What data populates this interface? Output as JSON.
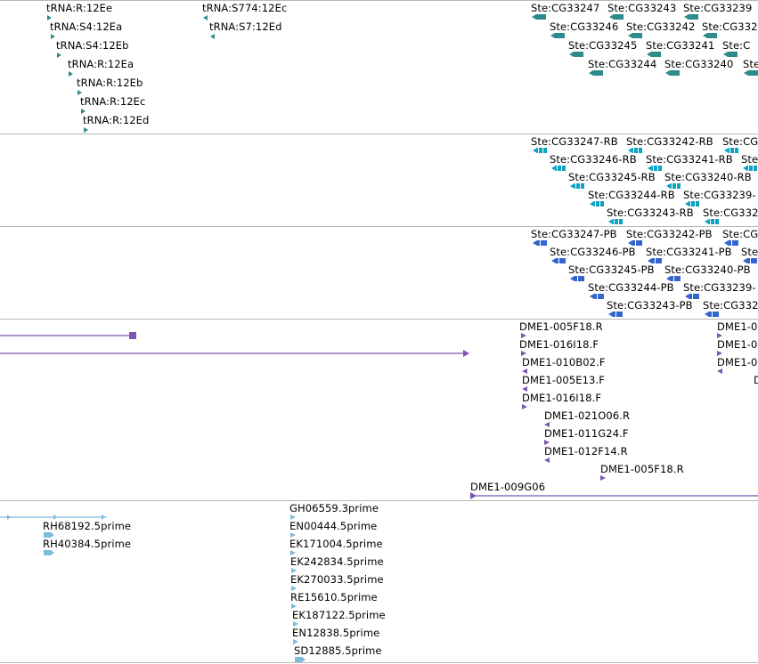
{
  "colors": {
    "trna": "#2e8b8b",
    "gene": "#2e8b8b",
    "transcript": "#0aa3c2",
    "protein": "#3366cc",
    "clone": "#7b55b0",
    "est": "#7cbbd9",
    "divider": "#b8b8b8"
  },
  "tier1": {
    "features": [
      {
        "label": "tRNA:R:12Ee",
        "strand": "+"
      },
      {
        "label": "tRNA:S4:12Ea",
        "strand": "+"
      },
      {
        "label": "tRNA:S4:12Eb",
        "strand": "+"
      },
      {
        "label": "tRNA:R:12Ea",
        "strand": "+"
      },
      {
        "label": "tRNA:R:12Eb",
        "strand": "+"
      },
      {
        "label": "tRNA:R:12Ec",
        "strand": "+"
      },
      {
        "label": "tRNA:R:12Ed",
        "strand": "+"
      },
      {
        "label": "tRNA:S774:12Ec",
        "strand": "-"
      },
      {
        "label": "tRNA:S7:12Ed",
        "strand": "-"
      },
      {
        "label": "Ste:CG33247",
        "strand": "-"
      },
      {
        "label": "Ste:CG33243",
        "strand": "-"
      },
      {
        "label": "Ste:CG33239",
        "strand": "-"
      },
      {
        "label": "Ste:CG33246",
        "strand": "-"
      },
      {
        "label": "Ste:CG33242",
        "strand": "-"
      },
      {
        "label": "Ste:CG332",
        "strand": "-"
      },
      {
        "label": "Ste:CG33245",
        "strand": "-"
      },
      {
        "label": "Ste:CG33241",
        "strand": "-"
      },
      {
        "label": "Ste:C",
        "strand": "-"
      },
      {
        "label": "Ste:CG33244",
        "strand": "-"
      },
      {
        "label": "Ste:CG33240",
        "strand": "-"
      },
      {
        "label": "Ste:",
        "strand": "-"
      }
    ]
  },
  "tier2": {
    "features": [
      {
        "label": "Ste:CG33247-RB"
      },
      {
        "label": "Ste:CG33242-RB"
      },
      {
        "label": "Ste:CG"
      },
      {
        "label": "Ste:CG33246-RB"
      },
      {
        "label": "Ste:CG33241-RB"
      },
      {
        "label": "Ste"
      },
      {
        "label": "Ste:CG33245-RB"
      },
      {
        "label": "Ste:CG33240-RB"
      },
      {
        "label": "Ste:CG33244-RB"
      },
      {
        "label": "Ste:CG33239-"
      },
      {
        "label": "Ste:CG33243-RB"
      },
      {
        "label": "Ste:CG332"
      }
    ]
  },
  "tier3": {
    "features": [
      {
        "label": "Ste:CG33247-PB"
      },
      {
        "label": "Ste:CG33242-PB"
      },
      {
        "label": "Ste:CG"
      },
      {
        "label": "Ste:CG33246-PB"
      },
      {
        "label": "Ste:CG33241-PB"
      },
      {
        "label": "Ste"
      },
      {
        "label": "Ste:CG33245-PB"
      },
      {
        "label": "Ste:CG33240-PB"
      },
      {
        "label": "Ste:CG33244-PB"
      },
      {
        "label": "Ste:CG33239-"
      },
      {
        "label": "Ste:CG33243-PB"
      },
      {
        "label": "Ste:CG332"
      }
    ]
  },
  "tier4": {
    "features": [
      {
        "label": "DME1-005F18.R"
      },
      {
        "label": "DME1-016I18.F"
      },
      {
        "label": "DME1-010B02.F"
      },
      {
        "label": "DME1-005E13.F"
      },
      {
        "label": "DME1-016I18.F"
      },
      {
        "label": "DME1-021O06.R"
      },
      {
        "label": "DME1-011G24.F"
      },
      {
        "label": "DME1-012F14.R"
      },
      {
        "label": "DME1-005F18.R"
      },
      {
        "label": "DME1-009G06"
      },
      {
        "label": "DME1-0"
      },
      {
        "label": "DME1-0"
      },
      {
        "label": "DME1-0"
      },
      {
        "label": "D"
      }
    ]
  },
  "tier5": {
    "features": [
      {
        "label": "RH68192.5prime"
      },
      {
        "label": "RH40384.5prime"
      },
      {
        "label": "GH06559.3prime"
      },
      {
        "label": "EN00444.5prime"
      },
      {
        "label": "EK171004.5prime"
      },
      {
        "label": "EK242834.5prime"
      },
      {
        "label": "EK270033.5prime"
      },
      {
        "label": "RE15610.5prime"
      },
      {
        "label": "EK187122.5prime"
      },
      {
        "label": "EN12838.5prime"
      },
      {
        "label": "SD12885.5prime"
      }
    ]
  }
}
